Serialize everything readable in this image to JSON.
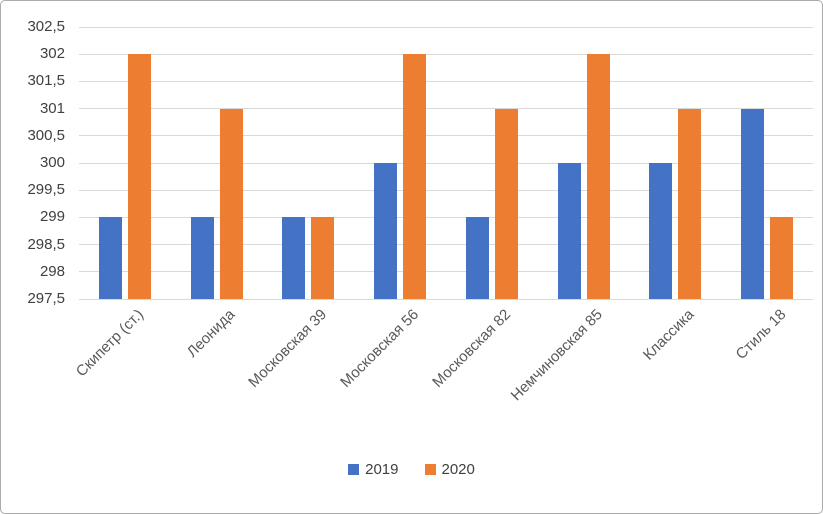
{
  "chart_data": {
    "type": "bar",
    "categories": [
      "Скипетр (ст.)",
      "Леонида",
      "Московская 39",
      "Московская 56",
      "Московская 82",
      "Немчиновская 85",
      "Классика",
      "Стиль 18"
    ],
    "series": [
      {
        "name": "2019",
        "color": "#4472c4",
        "values": [
          299,
          299,
          299,
          300,
          299,
          300,
          300,
          301
        ]
      },
      {
        "name": "2020",
        "color": "#ed7d31",
        "values": [
          302,
          301,
          299,
          302,
          301,
          302,
          301,
          299
        ]
      }
    ],
    "title": "",
    "xlabel": "",
    "ylabel": "",
    "ylim": [
      297.5,
      302.5
    ],
    "ytick_step": 0.5,
    "yticks_top_down": [
      "302,5",
      "302",
      "301,5",
      "301",
      "300,5",
      "300",
      "299,5",
      "299",
      "298,5",
      "298",
      "297,5"
    ],
    "grid": true,
    "legend_position": "bottom"
  },
  "colors": {
    "gridline": "#d9d9d9",
    "axis_text": "#404040",
    "category_text": "#595959",
    "border": "#ababab",
    "background": "#ffffff"
  }
}
